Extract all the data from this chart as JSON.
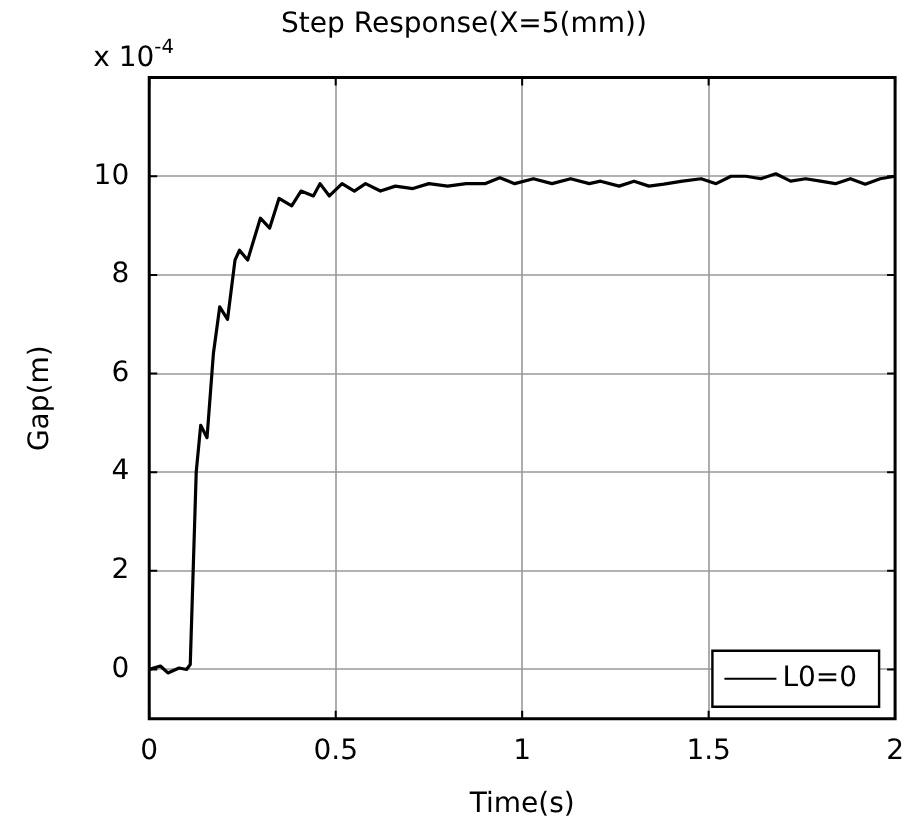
{
  "chart_data": {
    "type": "line",
    "title": "Step Response(X=5(mm))",
    "xlabel": "Time(s)",
    "ylabel": "Gap(m)",
    "annotations": [
      "x 10$^{-4}$"
    ],
    "xlim": [
      0,
      2
    ],
    "xticks": [
      0,
      {
        "value": 0.5,
        "label": "0.5"
      },
      1,
      {
        "value": 1.5,
        "label": "1.5"
      },
      2
    ],
    "ylim": [
      -1,
      12
    ],
    "yticks": [
      0,
      2,
      4,
      6,
      8,
      10
    ],
    "grid": true,
    "legend": "bottom right",
    "marker": "none",
    "line_style": "solid",
    "series": [
      {
        "name": "L0=0",
        "color": "#000000",
        "x": [
          0,
          0.03,
          0.05,
          0.08,
          0.1,
          0.11,
          0.126,
          0.138,
          0.155,
          0.172,
          0.189,
          0.21,
          0.23,
          0.242,
          0.264,
          0.298,
          0.323,
          0.348,
          0.382,
          0.407,
          0.44,
          0.458,
          0.483,
          0.517,
          0.55,
          0.58,
          0.62,
          0.66,
          0.707,
          0.75,
          0.8,
          0.85,
          0.9,
          0.94,
          0.98,
          1.03,
          1.08,
          1.13,
          1.18,
          1.21,
          1.26,
          1.3,
          1.34,
          1.38,
          1.43,
          1.48,
          1.52,
          1.56,
          1.6,
          1.64,
          1.68,
          1.72,
          1.76,
          1.8,
          1.84,
          1.88,
          1.92,
          1.96,
          2
        ],
        "values": [
          0,
          0.07,
          -0.07,
          0.03,
          0,
          0.1,
          4.0,
          4.95,
          4.7,
          6.4,
          7.35,
          7.1,
          8.3,
          8.5,
          8.3,
          9.15,
          8.95,
          9.55,
          9.4,
          9.7,
          9.6,
          9.85,
          9.6,
          9.85,
          9.7,
          9.85,
          9.7,
          9.8,
          9.75,
          9.85,
          9.8,
          9.85,
          9.85,
          9.97,
          9.85,
          9.95,
          9.85,
          9.95,
          9.85,
          9.9,
          9.8,
          9.9,
          9.8,
          9.84,
          9.9,
          9.95,
          9.85,
          10.0,
          10.0,
          9.95,
          10.05,
          9.9,
          9.95,
          9.9,
          9.85,
          9.95,
          9.84,
          9.95,
          10.0
        ]
      }
    ]
  }
}
